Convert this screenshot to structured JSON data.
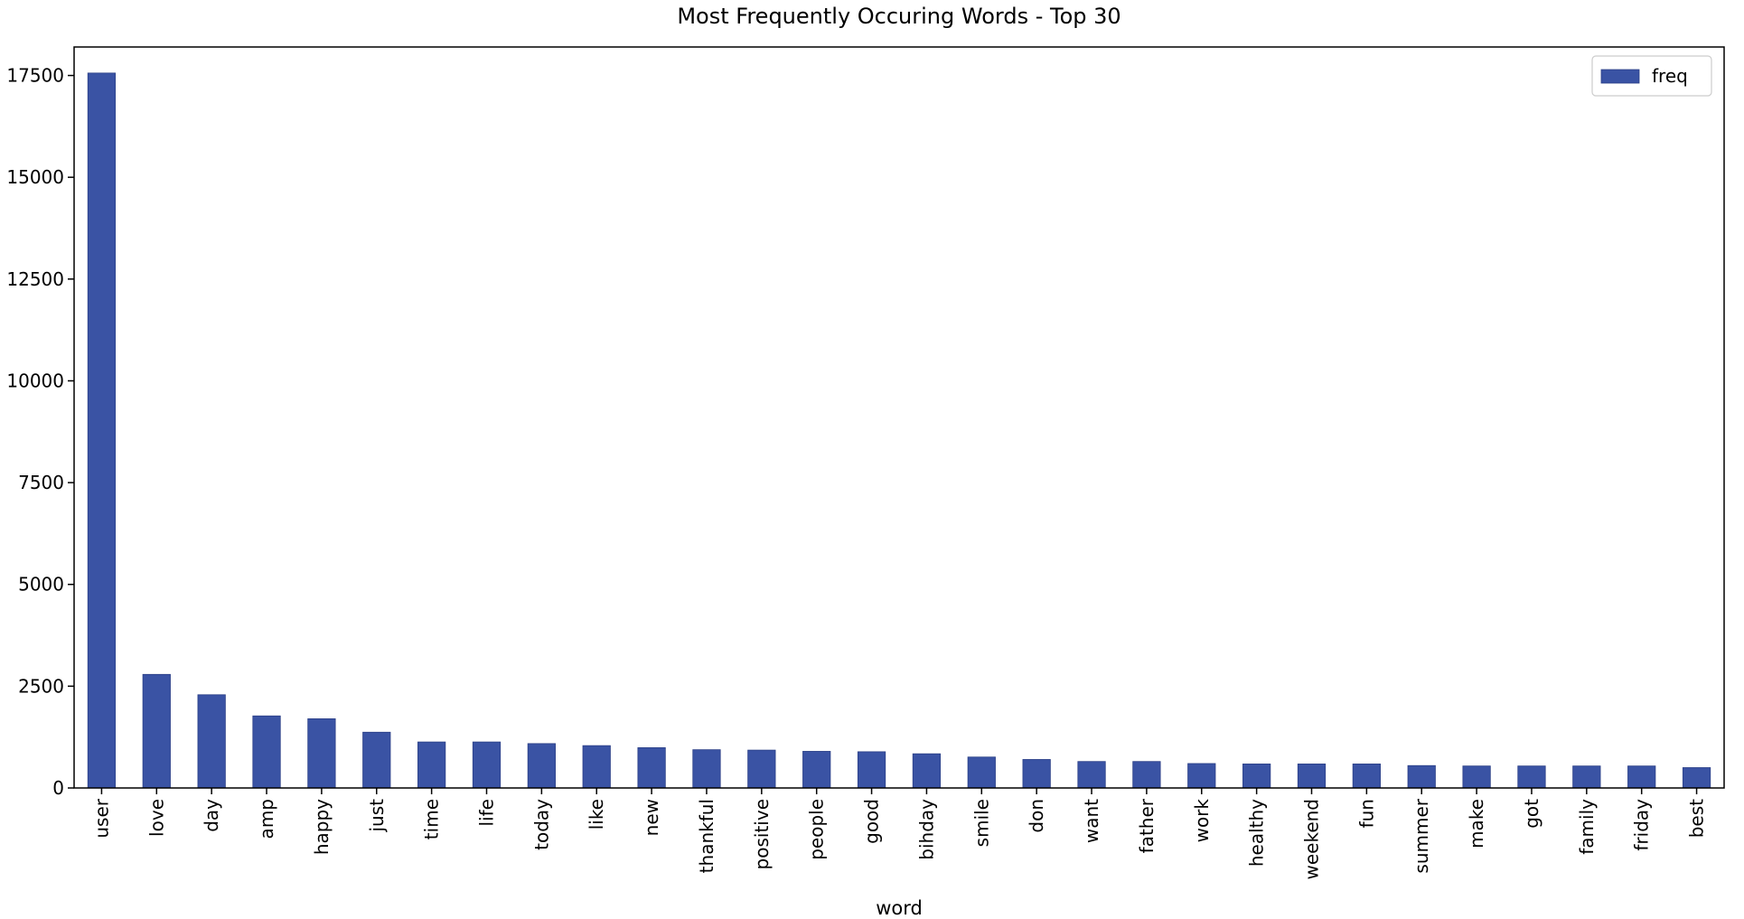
{
  "chart_data": {
    "type": "bar",
    "title": "Most Frequently Occuring Words - Top 30",
    "xlabel": "word",
    "ylabel": "",
    "ylim": [
      0,
      18200
    ],
    "yticks": [
      0,
      2500,
      5000,
      7500,
      10000,
      12500,
      15000,
      17500
    ],
    "legend": {
      "position": "top-right",
      "entries": [
        "freq"
      ]
    },
    "color": "#3a53a4",
    "categories": [
      "user",
      "love",
      "day",
      "amp",
      "happy",
      "just",
      "time",
      "life",
      "today",
      "like",
      "new",
      "thankful",
      "positive",
      "people",
      "good",
      "bihday",
      "smile",
      "don",
      "want",
      "father",
      "work",
      "healthy",
      "weekend",
      "fun",
      "summer",
      "make",
      "got",
      "family",
      "friday",
      "best"
    ],
    "series": [
      {
        "name": "freq",
        "values": [
          17560,
          2790,
          2290,
          1770,
          1700,
          1370,
          1130,
          1130,
          1090,
          1040,
          990,
          940,
          930,
          900,
          890,
          840,
          760,
          700,
          650,
          650,
          600,
          590,
          590,
          590,
          550,
          540,
          540,
          540,
          540,
          500
        ]
      }
    ]
  }
}
